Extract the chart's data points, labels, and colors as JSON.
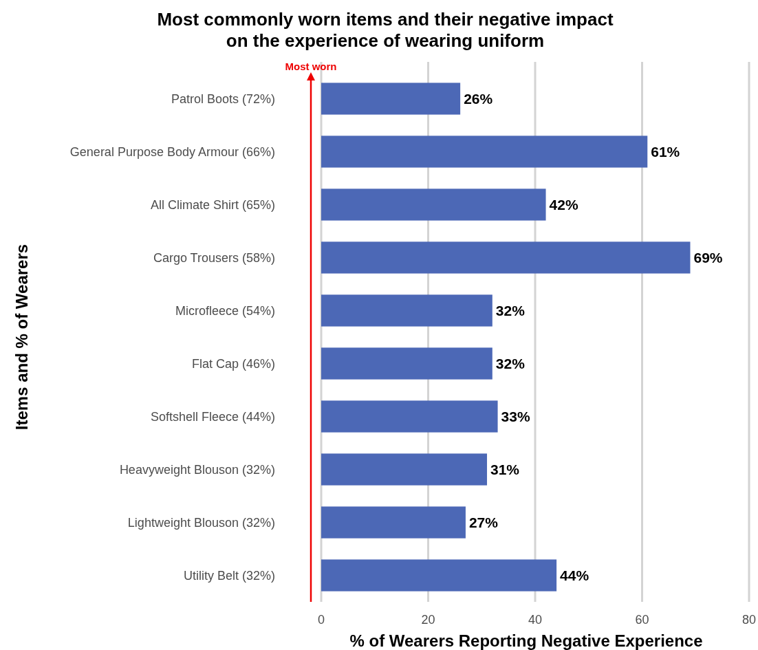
{
  "chart_data": {
    "type": "bar",
    "orientation": "horizontal",
    "title": "Most commonly worn items and their negative impact\non the experience of wearing uniform",
    "xlabel": "% of Wearers Reporting Negative Experience",
    "ylabel": "Items and % of Wearers",
    "categories": [
      "Patrol Boots (72%)",
      "General Purpose Body Armour (66%)",
      "All Climate Shirt (65%)",
      "Cargo Trousers (58%)",
      "Microfleece (54%)",
      "Flat Cap (46%)",
      "Softshell Fleece (44%)",
      "Heavyweight Blouson (32%)",
      "Lightweight Blouson (32%)",
      "Utility Belt (32%)"
    ],
    "values": [
      26,
      61,
      42,
      69,
      32,
      32,
      33,
      31,
      27,
      44
    ],
    "value_labels": [
      "26%",
      "61%",
      "42%",
      "69%",
      "32%",
      "32%",
      "33%",
      "31%",
      "27%",
      "44%"
    ],
    "color": "#4c68b6",
    "xlim": [
      0,
      80
    ],
    "xticks": [
      0,
      20,
      40,
      60,
      80
    ],
    "grid": "x",
    "annotations": [
      "Most worn"
    ]
  }
}
